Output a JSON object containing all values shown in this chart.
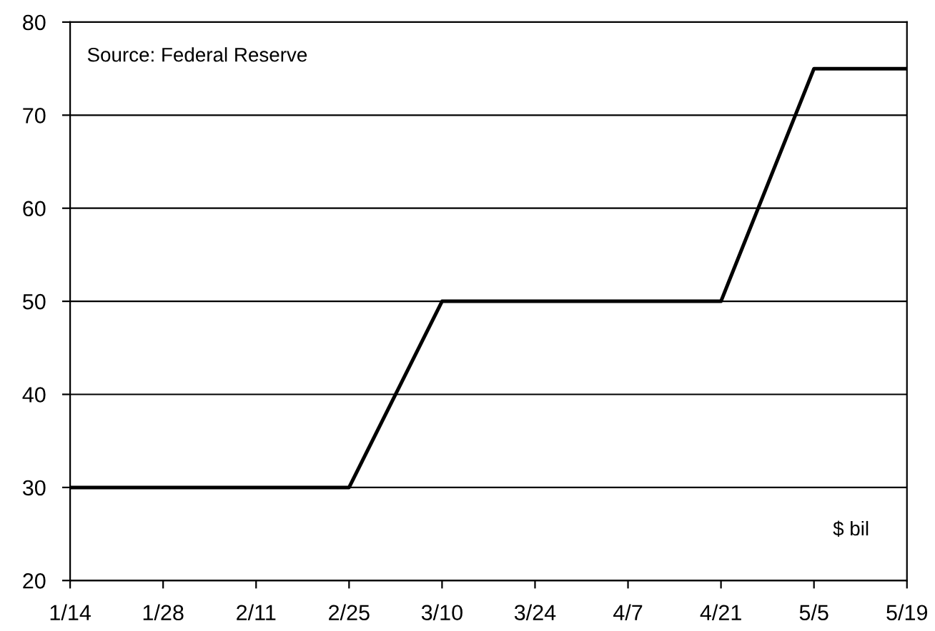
{
  "chart_data": {
    "type": "line",
    "categories": [
      "1/14",
      "1/28",
      "2/11",
      "2/25",
      "3/10",
      "3/24",
      "4/7",
      "4/21",
      "5/5",
      "5/19"
    ],
    "series": [
      {
        "color": "#000000",
        "values": [
          30,
          30,
          30,
          30,
          50,
          50,
          50,
          50,
          75,
          75
        ]
      }
    ],
    "ylim": [
      20,
      80
    ],
    "yticks": [
      20,
      30,
      40,
      50,
      60,
      70,
      80
    ],
    "grid": "y",
    "marker": "none",
    "line_style": "solid",
    "annotations": [
      "Source: Federal Reserve",
      "$ bil"
    ]
  }
}
